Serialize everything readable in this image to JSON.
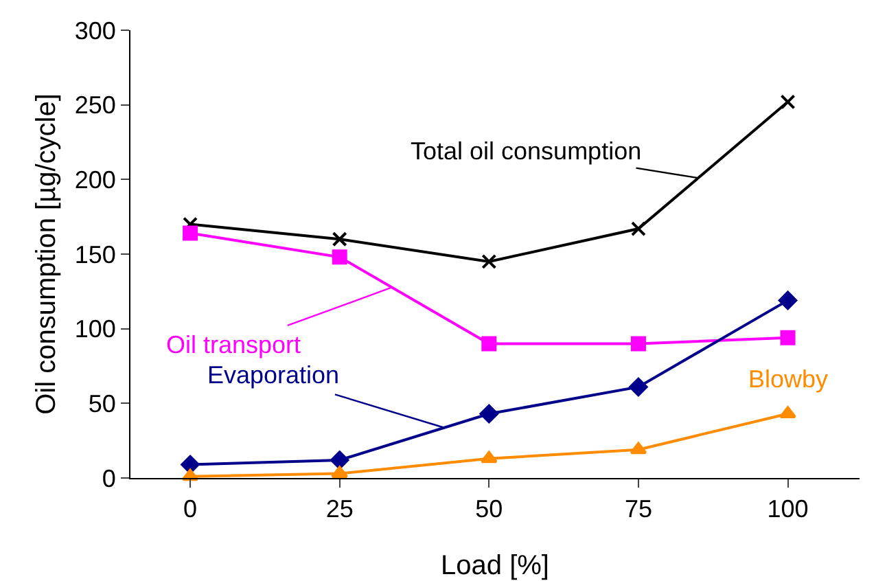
{
  "chart_data": {
    "type": "line",
    "xlabel": "Load [%]",
    "ylabel": "Oil consumption [µg/cycle]",
    "x": [
      0,
      25,
      50,
      75,
      100
    ],
    "xlim": [
      -10,
      112
    ],
    "xticks": [
      0,
      25,
      50,
      75,
      100
    ],
    "ylim": [
      0,
      300
    ],
    "yticks": [
      0,
      50,
      100,
      150,
      200,
      250,
      300
    ],
    "grid": false,
    "legend": false,
    "series": [
      {
        "name": "Total oil consumption",
        "color": "#000000",
        "marker": "cross",
        "values": [
          170,
          160,
          145,
          167,
          252
        ]
      },
      {
        "name": "Oil transport",
        "color": "#ff00ff",
        "marker": "square",
        "values": [
          164,
          148,
          90,
          90,
          94
        ]
      },
      {
        "name": "Evaporation",
        "color": "#00008b",
        "marker": "diamond",
        "values": [
          9,
          12,
          43,
          61,
          119
        ]
      },
      {
        "name": "Blowby",
        "color": "#ff8c00",
        "marker": "triangle",
        "values": [
          1,
          3,
          13,
          19,
          43
        ]
      }
    ]
  }
}
